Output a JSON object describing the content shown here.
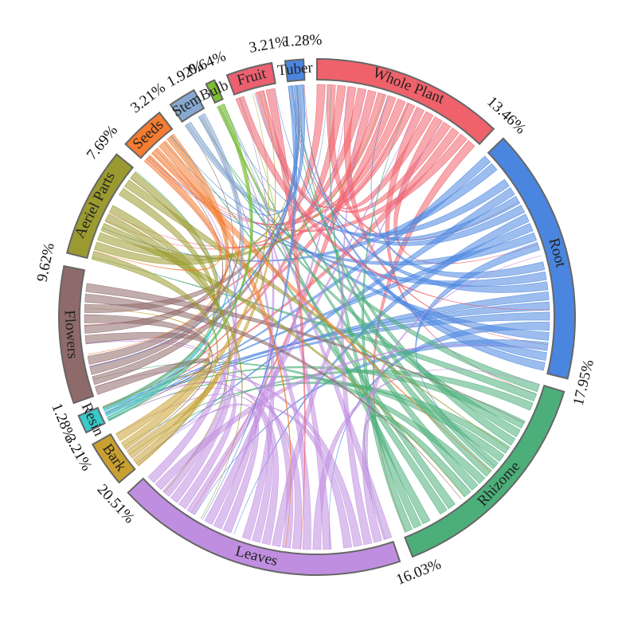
{
  "chart_data": {
    "type": "chord",
    "categories": [
      "Whole Plant",
      "Root",
      "Rhizome",
      "Leaves",
      "Bark",
      "Resin",
      "Flowers",
      "Aeriel Parts",
      "Seeds",
      "Stem",
      "Bulb",
      "Fruit",
      "Tuber"
    ],
    "values": [
      13.46,
      17.95,
      16.03,
      20.51,
      3.21,
      1.28,
      9.62,
      7.69,
      3.21,
      1.92,
      0.64,
      3.21,
      1.28
    ],
    "value_labels": [
      "13.46%",
      "17.95%",
      "16.03%",
      "20.51%",
      "3.21%",
      "1.28%",
      "9.62%",
      "7.69%",
      "3.21%",
      "1.92%",
      "0.64%",
      "3.21%",
      "1.28%"
    ],
    "colors": [
      "#f0626b",
      "#4a86e0",
      "#4caf7a",
      "#c08ee0",
      "#c9a030",
      "#38c9c9",
      "#8f6a6a",
      "#9a9a30",
      "#f57c30",
      "#86a8d0",
      "#7cbf30",
      "#ec6070",
      "#4a86e0"
    ]
  }
}
